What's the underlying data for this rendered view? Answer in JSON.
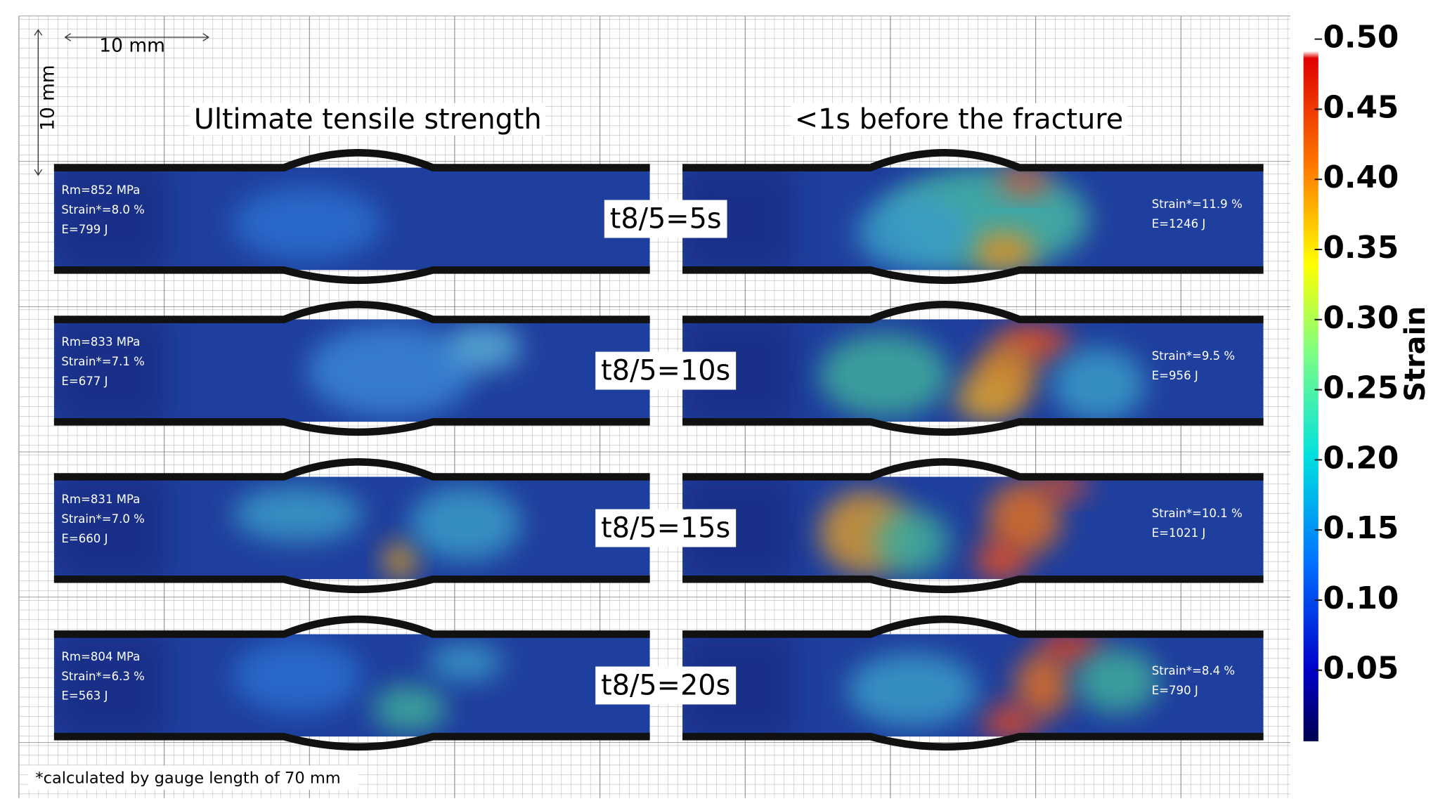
{
  "scale_bar": {
    "horizontal": "10 mm",
    "vertical": "10 mm"
  },
  "column_titles": [
    "Ultimate tensile strength",
    "<1s before the fracture"
  ],
  "rows": [
    {
      "label": "t8/5=5s",
      "left": [
        "Rm=852 MPa",
        "Strain*=8.0 %",
        "E=799 J"
      ],
      "right": [
        "Strain*=11.9 %",
        "E=1246 J"
      ]
    },
    {
      "label": "t8/5=10s",
      "left": [
        "Rm=833 MPa",
        "Strain*=7.1 %",
        "E=677 J"
      ],
      "right": [
        "Strain*=9.5 %",
        "E=956 J"
      ]
    },
    {
      "label": "t8/5=15s",
      "left": [
        "Rm=831 MPa",
        "Strain*=7.0 %",
        "E=660 J"
      ],
      "right": [
        "Strain*=10.1 %",
        "E=1021 J"
      ]
    },
    {
      "label": "t8/5=20s",
      "left": [
        "Rm=804 MPa",
        "Strain*=6.3 %",
        "E=563 J"
      ],
      "right": [
        "Strain*=8.4 %",
        "E=790 J"
      ]
    }
  ],
  "colorbar": {
    "label": "Strain",
    "ticks": [
      {
        "value": 0.5,
        "label": "0.50"
      },
      {
        "value": 0.45,
        "label": "0.45"
      },
      {
        "value": 0.4,
        "label": "0.40"
      },
      {
        "value": 0.35,
        "label": "0.35"
      },
      {
        "value": 0.3,
        "label": "0.30"
      },
      {
        "value": 0.25,
        "label": "0.25"
      },
      {
        "value": 0.2,
        "label": "0.20"
      },
      {
        "value": 0.15,
        "label": "0.15"
      },
      {
        "value": 0.1,
        "label": "0.10"
      },
      {
        "value": 0.05,
        "label": "0.05"
      }
    ]
  },
  "footnote": "*calculated by gauge length of 70 mm"
}
